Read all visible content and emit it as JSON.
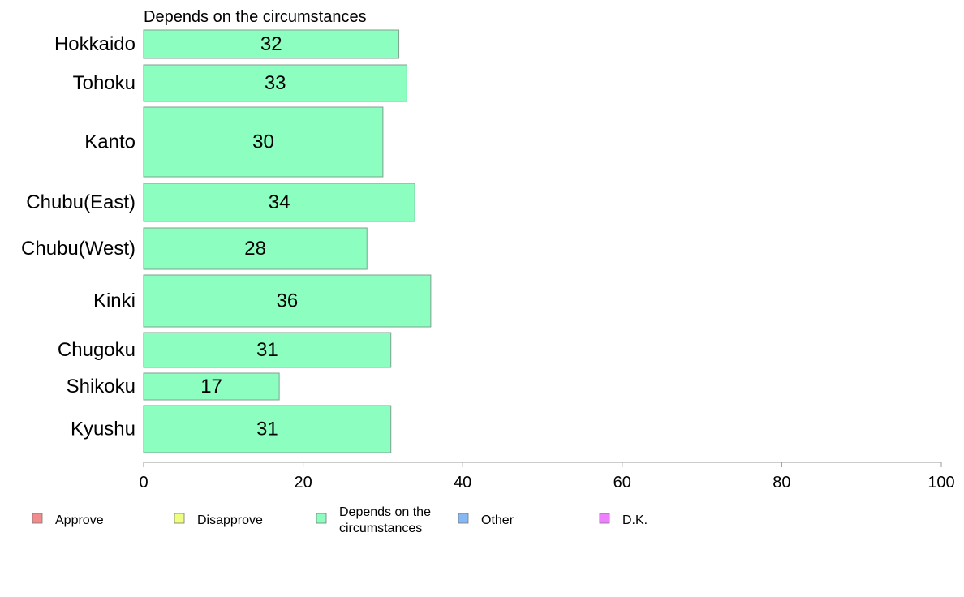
{
  "chart_data": {
    "type": "bar",
    "orientation": "horizontal",
    "title": "Depends on the circumstances",
    "xlabel": "",
    "ylabel": "",
    "xlim": [
      0,
      100
    ],
    "xticks": [
      0,
      20,
      40,
      60,
      80,
      100
    ],
    "grid": false,
    "legend_position": "bottom",
    "categories": [
      "Hokkaido",
      "Tohoku",
      "Kanto",
      "Chubu(East)",
      "Chubu(West)",
      "Kinki",
      "Chugoku",
      "Shikoku",
      "Kyushu"
    ],
    "series": [
      {
        "name": "Depends on the circumstances",
        "color": "#8CFFC0",
        "values": [
          32,
          33,
          30,
          34,
          28,
          36,
          31,
          17,
          31
        ]
      }
    ],
    "legend": [
      {
        "label": "Approve",
        "color": "#F28B8B"
      },
      {
        "label": "Disapprove",
        "color": "#EEFF80"
      },
      {
        "label": "Depends on the circumstances",
        "color": "#8CFFC0"
      },
      {
        "label": "Other",
        "color": "#86B8F5"
      },
      {
        "label": "D.K.",
        "color": "#EE80FF"
      }
    ]
  }
}
